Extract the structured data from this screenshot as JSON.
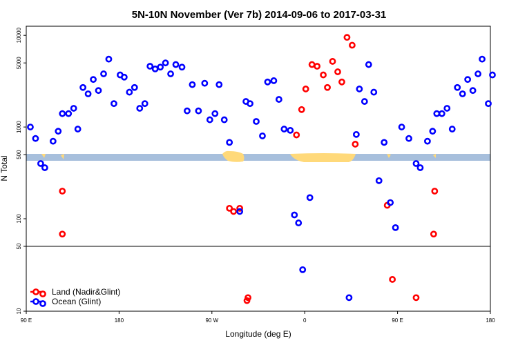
{
  "chart_data": {
    "type": "scatter",
    "title": "5N-10N November (Ver 7b)   2014-09-06 to 2017-03-31",
    "xlabel": "Longitude (deg E)",
    "ylabel": "N Total",
    "x_scale": "longitude index (0 = 90 E, 450 = 180)",
    "xlim": [
      0,
      450
    ],
    "x_ticks": [
      {
        "x": 0,
        "label": "90 E"
      },
      {
        "x": 90,
        "label": "180"
      },
      {
        "x": 180,
        "label": "90 W"
      },
      {
        "x": 270,
        "label": "0"
      },
      {
        "x": 360,
        "label": "90 E"
      },
      {
        "x": 450,
        "label": "180"
      }
    ],
    "y_ticks": [
      {
        "v": 10,
        "label": "10"
      },
      {
        "v": 50,
        "label": "50"
      },
      {
        "v": 100,
        "label": "100"
      },
      {
        "v": 500,
        "label": "500"
      },
      {
        "v": 1000,
        "label": "1000"
      },
      {
        "v": 5000,
        "label": "5000"
      },
      {
        "v": 10000,
        "label": "10000"
      }
    ],
    "y_break_value": 50,
    "colors": {
      "land": "#ff0000",
      "ocean": "#0000ff",
      "band": "#a7bfdc",
      "landmass": "#ffd97a"
    },
    "legend": [
      {
        "label": "Land (Nadir&Glint)",
        "color": "#ff0000"
      },
      {
        "label": "Ocean (Glint)",
        "color": "#0000ff"
      }
    ],
    "series": [
      {
        "name": "Land (Nadir&Glint)",
        "color": "#ff0000",
        "points": [
          [
            35,
            200
          ],
          [
            35,
            68
          ],
          [
            197,
            130
          ],
          [
            201,
            120
          ],
          [
            207,
            130
          ],
          [
            214,
            13
          ],
          [
            215,
            14
          ],
          [
            262,
            820
          ],
          [
            267,
            1550
          ],
          [
            271,
            2600
          ],
          [
            277,
            4800
          ],
          [
            282,
            4600
          ],
          [
            288,
            3700
          ],
          [
            292,
            2700
          ],
          [
            297,
            5200
          ],
          [
            302,
            4000
          ],
          [
            306,
            3100
          ],
          [
            311,
            9500
          ],
          [
            316,
            7800
          ],
          [
            319,
            650
          ],
          [
            350,
            140
          ],
          [
            355,
            22
          ],
          [
            378,
            14
          ],
          [
            395,
            68
          ],
          [
            396,
            200
          ]
        ]
      },
      {
        "name": "Ocean (Glint)",
        "color": "#0000ff",
        "points": [
          [
            4,
            1000
          ],
          [
            9,
            750
          ],
          [
            14,
            400
          ],
          [
            18,
            360
          ],
          [
            26,
            700
          ],
          [
            31,
            900
          ],
          [
            35,
            1400
          ],
          [
            41,
            1400
          ],
          [
            46,
            1600
          ],
          [
            50,
            950
          ],
          [
            55,
            2700
          ],
          [
            60,
            2300
          ],
          [
            65,
            3300
          ],
          [
            70,
            2500
          ],
          [
            75,
            3800
          ],
          [
            80,
            5500
          ],
          [
            85,
            1800
          ],
          [
            91,
            3700
          ],
          [
            95,
            3500
          ],
          [
            100,
            2400
          ],
          [
            105,
            2700
          ],
          [
            110,
            1600
          ],
          [
            115,
            1800
          ],
          [
            120,
            4600
          ],
          [
            125,
            4300
          ],
          [
            130,
            4500
          ],
          [
            135,
            5000
          ],
          [
            140,
            3800
          ],
          [
            145,
            4800
          ],
          [
            151,
            4500
          ],
          [
            156,
            1500
          ],
          [
            161,
            2900
          ],
          [
            167,
            1500
          ],
          [
            173,
            3000
          ],
          [
            178,
            1200
          ],
          [
            183,
            1400
          ],
          [
            187,
            2900
          ],
          [
            192,
            1200
          ],
          [
            197,
            680
          ],
          [
            207,
            120
          ],
          [
            213,
            1900
          ],
          [
            217,
            1800
          ],
          [
            223,
            1150
          ],
          [
            229,
            800
          ],
          [
            234,
            3100
          ],
          [
            240,
            3200
          ],
          [
            245,
            2000
          ],
          [
            250,
            950
          ],
          [
            256,
            920
          ],
          [
            260,
            110
          ],
          [
            264,
            90
          ],
          [
            268,
            28
          ],
          [
            275,
            170
          ],
          [
            313,
            14
          ],
          [
            320,
            830
          ],
          [
            323,
            2600
          ],
          [
            328,
            1900
          ],
          [
            332,
            4800
          ],
          [
            337,
            2400
          ],
          [
            342,
            260
          ],
          [
            347,
            680
          ],
          [
            353,
            150
          ],
          [
            358,
            80
          ],
          [
            364,
            1000
          ],
          [
            371,
            750
          ],
          [
            378,
            400
          ],
          [
            382,
            360
          ],
          [
            389,
            700
          ],
          [
            394,
            900
          ],
          [
            398,
            1400
          ],
          [
            403,
            1400
          ],
          [
            408,
            1600
          ],
          [
            413,
            950
          ],
          [
            418,
            2700
          ],
          [
            423,
            2300
          ],
          [
            428,
            3300
          ],
          [
            433,
            2500
          ],
          [
            438,
            3800
          ],
          [
            442,
            5500
          ],
          [
            448,
            1800
          ],
          [
            452,
            3700
          ]
        ]
      }
    ]
  }
}
